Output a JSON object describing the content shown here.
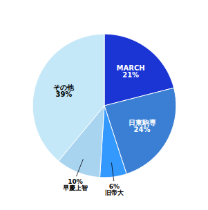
{
  "chart_data": {
    "type": "pie",
    "categories": [
      "MARCH",
      "日東駒専",
      "旧帝大",
      "早慶上智",
      "その他"
    ],
    "values": [
      21,
      24,
      6,
      10,
      39
    ],
    "value_labels": [
      "21%",
      "24%",
      "6%",
      "10%",
      "39%"
    ],
    "colors": [
      "#1a35d4",
      "#3a7fd4",
      "#3399ff",
      "#a8d4f0",
      "#c5e8f8"
    ],
    "data_labels": true
  }
}
